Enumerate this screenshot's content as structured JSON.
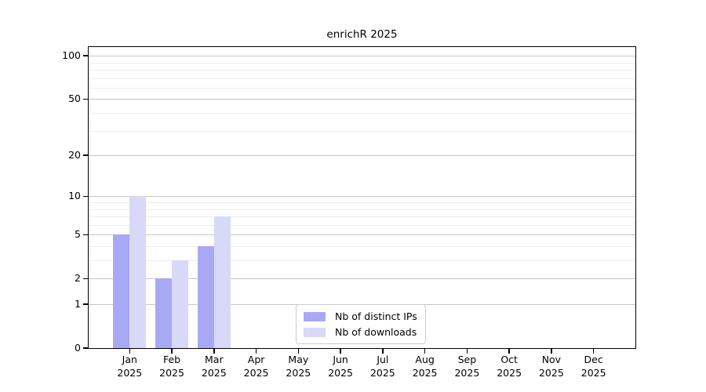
{
  "chart_data": {
    "type": "bar",
    "title": "enrichR 2025",
    "categories": [
      {
        "month": "Jan",
        "year": "2025"
      },
      {
        "month": "Feb",
        "year": "2025"
      },
      {
        "month": "Mar",
        "year": "2025"
      },
      {
        "month": "Apr",
        "year": "2025"
      },
      {
        "month": "May",
        "year": "2025"
      },
      {
        "month": "Jun",
        "year": "2025"
      },
      {
        "month": "Jul",
        "year": "2025"
      },
      {
        "month": "Aug",
        "year": "2025"
      },
      {
        "month": "Sep",
        "year": "2025"
      },
      {
        "month": "Oct",
        "year": "2025"
      },
      {
        "month": "Nov",
        "year": "2025"
      },
      {
        "month": "Dec",
        "year": "2025"
      }
    ],
    "series": [
      {
        "name": "Nb of distinct IPs",
        "color": "#a8a8f5",
        "values": [
          5,
          2,
          4,
          0,
          0,
          0,
          0,
          0,
          0,
          0,
          0,
          0
        ]
      },
      {
        "name": "Nb of downloads",
        "color": "#d8d8f8",
        "values": [
          10,
          3,
          7,
          0,
          0,
          0,
          0,
          0,
          0,
          0,
          0,
          0
        ]
      }
    ],
    "xlabel": "",
    "ylabel": "",
    "y_ticks": [
      0,
      1,
      2,
      5,
      10,
      20,
      50,
      100
    ],
    "y_minor_ticks": [
      3,
      4,
      6,
      7,
      8,
      9,
      30,
      40,
      60,
      70,
      80,
      90
    ],
    "ylim": [
      0,
      115
    ],
    "y_scale": "log1p",
    "grid": true,
    "legend_position": "lower center"
  }
}
